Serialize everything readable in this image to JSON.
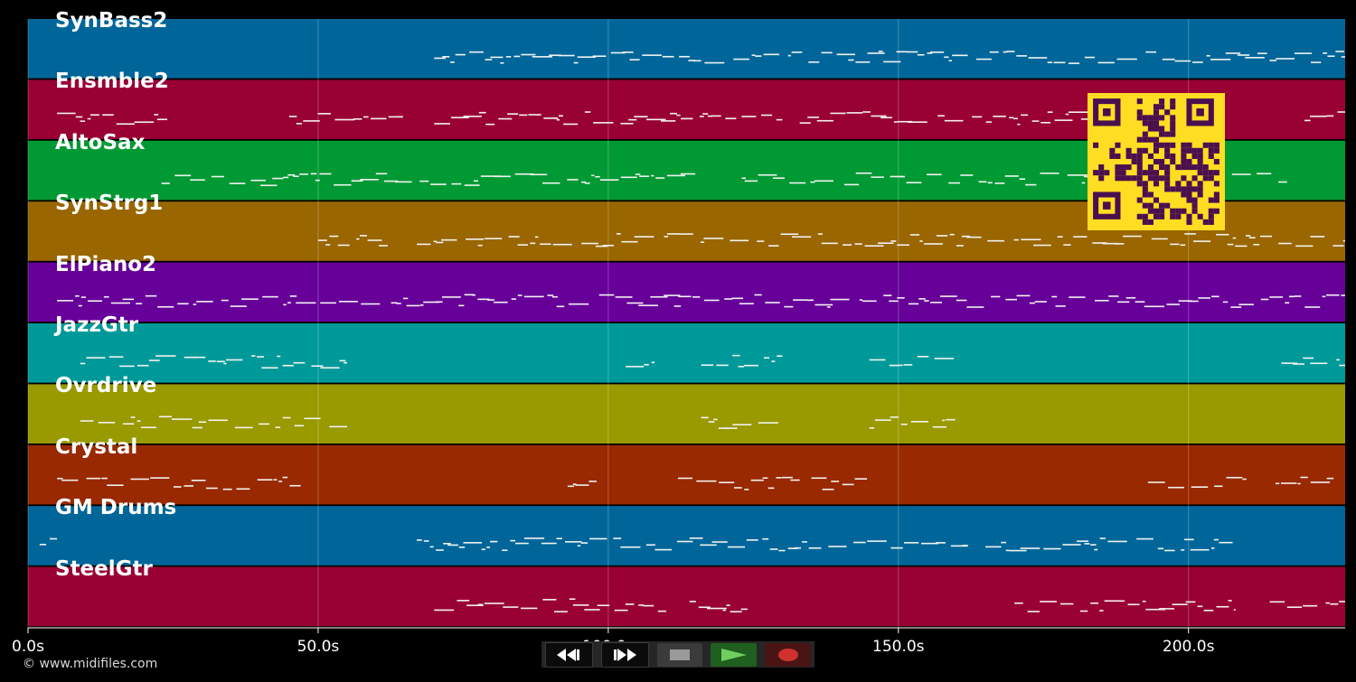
{
  "tracks": [
    {
      "name": "SynBass2",
      "color": "#006699"
    },
    {
      "name": "Ensmble2",
      "color": "#990033"
    },
    {
      "name": "AltoSax",
      "color": "#009933"
    },
    {
      "name": "SynStrg1",
      "color": "#996600"
    },
    {
      "name": "ElPiano2",
      "color": "#660099"
    },
    {
      "name": "JazzGtr",
      "color": "#009999"
    },
    {
      "name": "Ovrdrive",
      "color": "#999900"
    },
    {
      "name": "Crystal",
      "color": "#992900"
    },
    {
      "name": "GM Drums",
      "color": "#006699"
    },
    {
      "name": "SteelGtr",
      "color": "#990033"
    }
  ],
  "timeline": {
    "ticks": [
      "0.0s",
      "50.0s",
      "100.0s",
      "150.0s",
      "200.0s"
    ],
    "tick_values": [
      0,
      50,
      100,
      150,
      200
    ],
    "max_time": 227
  },
  "copyright": "© www.midifiles.com",
  "transport": {
    "rewind_icon": "rewind-icon",
    "forward_icon": "fast-forward-icon",
    "stop_icon": "stop-icon",
    "play_icon": "play-icon",
    "record_icon": "record-icon"
  },
  "qr": {
    "foreground": "#ffdd22",
    "background": "#4a0f4f"
  }
}
